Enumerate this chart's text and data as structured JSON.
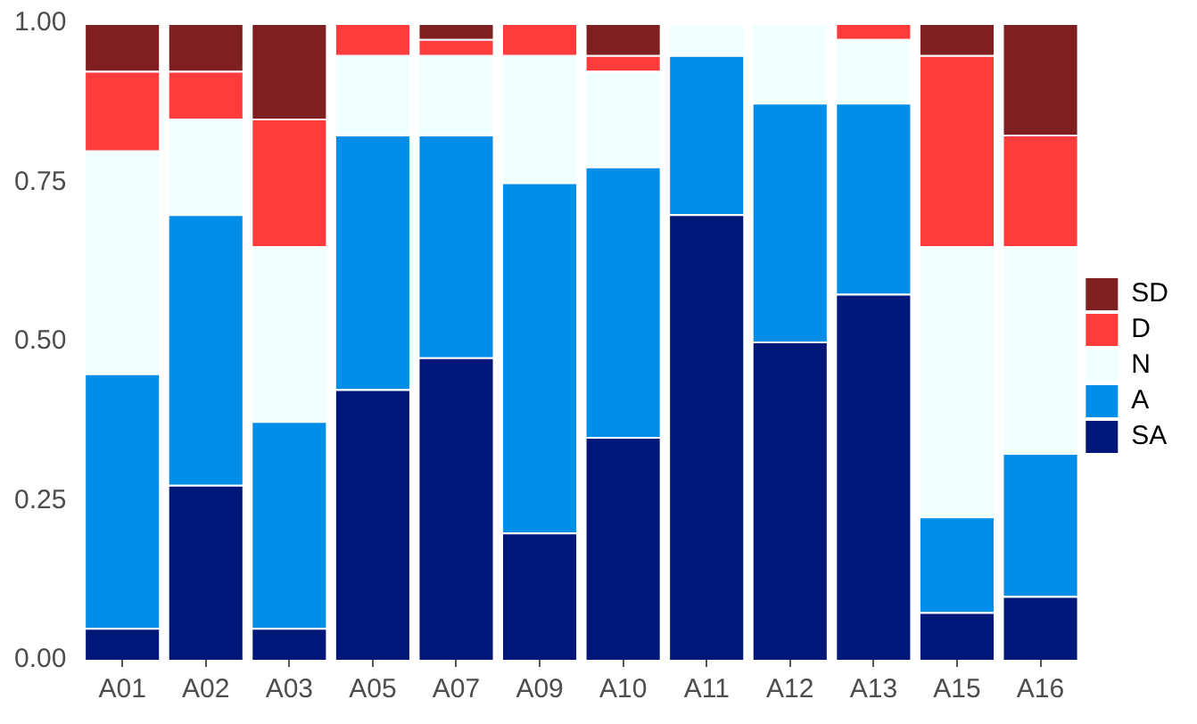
{
  "chart_data": {
    "type": "bar",
    "stacked": true,
    "categories": [
      "A01",
      "A02",
      "A03",
      "A05",
      "A07",
      "A09",
      "A10",
      "A11",
      "A12",
      "A13",
      "A15",
      "A16"
    ],
    "series": [
      {
        "name": "SA",
        "color": "#00177a",
        "values": [
          0.05,
          0.275,
          0.05,
          0.425,
          0.475,
          0.2,
          0.35,
          0.7,
          0.5,
          0.575,
          0.075,
          0.1
        ]
      },
      {
        "name": "A",
        "color": "#008ee8",
        "values": [
          0.4,
          0.425,
          0.325,
          0.4,
          0.35,
          0.55,
          0.425,
          0.25,
          0.375,
          0.3,
          0.15,
          0.225
        ]
      },
      {
        "name": "N",
        "color": "#f0ffff",
        "values": [
          0.35,
          0.15,
          0.275,
          0.125,
          0.125,
          0.2,
          0.15,
          0.05,
          0.125,
          0.1,
          0.425,
          0.325
        ]
      },
      {
        "name": "D",
        "color": "#ff3b3b",
        "values": [
          0.125,
          0.075,
          0.2,
          0.05,
          0.025,
          0.05,
          0.025,
          0,
          0,
          0.025,
          0.3,
          0.175
        ]
      },
      {
        "name": "SD",
        "color": "#7f1f1f",
        "values": [
          0.075,
          0.075,
          0.15,
          0,
          0.025,
          0,
          0.05,
          0,
          0,
          0,
          0.05,
          0.175
        ]
      }
    ],
    "ylim": [
      0,
      1
    ],
    "yticks": [
      {
        "value": 0,
        "label": "0.00"
      },
      {
        "value": 0.25,
        "label": "0.25"
      },
      {
        "value": 0.5,
        "label": "0.50"
      },
      {
        "value": 0.75,
        "label": "0.75"
      },
      {
        "value": 1,
        "label": "1.00"
      }
    ],
    "grid": false,
    "legend": "right"
  }
}
